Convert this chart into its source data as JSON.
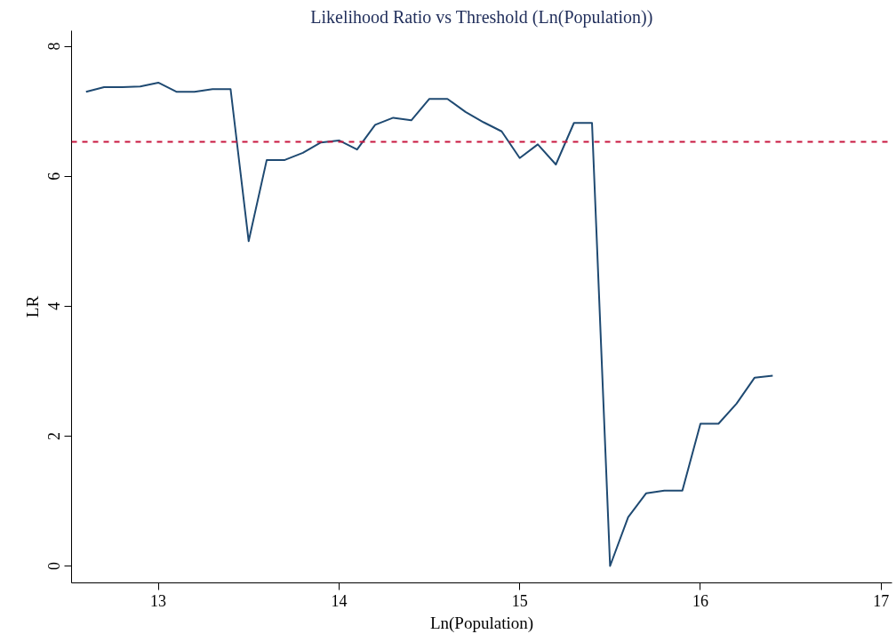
{
  "chart_data": {
    "type": "line",
    "title": "Likelihood Ratio vs Threshold (Ln(Population))",
    "xlabel": "Ln(Population)",
    "ylabel": "LR",
    "x": [
      12.6,
      12.7,
      12.8,
      12.9,
      13.0,
      13.1,
      13.2,
      13.3,
      13.4,
      13.5,
      13.6,
      13.7,
      13.8,
      13.9,
      14.0,
      14.1,
      14.2,
      14.3,
      14.4,
      14.5,
      14.6,
      14.7,
      14.8,
      14.9,
      15.0,
      15.1,
      15.2,
      15.3,
      15.4,
      15.5,
      15.6,
      15.7,
      15.8,
      15.9,
      16.0,
      16.1,
      16.2,
      16.3,
      16.4
    ],
    "series": [
      {
        "color": "#1f4a72",
        "values": [
          7.3,
          7.37,
          7.37,
          7.38,
          7.44,
          7.3,
          7.3,
          7.34,
          7.34,
          5.0,
          6.25,
          6.25,
          6.36,
          6.52,
          6.55,
          6.41,
          6.79,
          6.9,
          6.86,
          7.19,
          7.19,
          6.99,
          6.83,
          6.69,
          6.28,
          6.49,
          6.18,
          6.82,
          6.82,
          0.0,
          0.75,
          1.12,
          1.16,
          1.16,
          2.19,
          2.19,
          2.5,
          2.9,
          2.93
        ]
      }
    ],
    "xlim": [
      12.52,
      17.06
    ],
    "ylim": [
      -0.26,
      8.24
    ],
    "xticks": [
      13,
      14,
      15,
      16,
      17
    ],
    "yticks": [
      0,
      2,
      4,
      6,
      8
    ],
    "ref_lines": [
      {
        "axis": "y",
        "value": 6.53,
        "color": "#c8173f",
        "line_style": "dashed"
      }
    ],
    "grid": false,
    "line_style": "solid",
    "marker": "none"
  }
}
